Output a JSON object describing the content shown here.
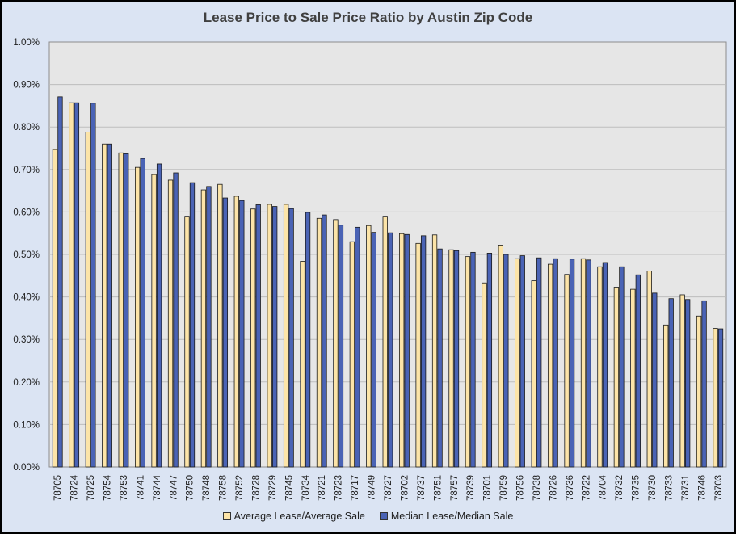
{
  "chart_data": {
    "type": "bar",
    "title": "Lease Price to Sale Price Ratio by Austin Zip Code",
    "xlabel": "",
    "ylabel": "",
    "ylim": [
      0,
      0.01
    ],
    "y_ticks": [
      "0.00%",
      "0.10%",
      "0.20%",
      "0.30%",
      "0.40%",
      "0.50%",
      "0.60%",
      "0.70%",
      "0.80%",
      "0.90%",
      "1.00%"
    ],
    "grid": true,
    "legend_position": "bottom",
    "categories": [
      "78705",
      "78724",
      "78725",
      "78754",
      "78753",
      "78741",
      "78744",
      "78747",
      "78750",
      "78748",
      "78758",
      "78752",
      "78728",
      "78729",
      "78745",
      "78734",
      "78721",
      "78723",
      "78717",
      "78749",
      "78727",
      "78702",
      "78737",
      "78751",
      "78757",
      "78739",
      "78701",
      "78759",
      "78756",
      "78738",
      "78726",
      "78736",
      "78722",
      "78704",
      "78732",
      "78735",
      "78730",
      "78733",
      "78731",
      "78746",
      "78703"
    ],
    "series": [
      {
        "name": "Average Lease/Average Sale",
        "color": "#fce4a8",
        "values": [
          0.00747,
          0.00857,
          0.00788,
          0.0076,
          0.00739,
          0.00705,
          0.00688,
          0.00675,
          0.0059,
          0.00652,
          0.00665,
          0.00637,
          0.00607,
          0.00618,
          0.00618,
          0.00484,
          0.00585,
          0.00582,
          0.0053,
          0.00568,
          0.0059,
          0.00549,
          0.00526,
          0.00546,
          0.00511,
          0.00495,
          0.00433,
          0.00522,
          0.0049,
          0.00438,
          0.00477,
          0.00453,
          0.0049,
          0.00471,
          0.00423,
          0.00418,
          0.00461,
          0.00334,
          0.00405,
          0.00355,
          0.00326
        ]
      },
      {
        "name": "Median Lease/Median Sale",
        "color": "#4a63b5",
        "values": [
          0.00871,
          0.00857,
          0.00856,
          0.0076,
          0.00737,
          0.00726,
          0.00713,
          0.00692,
          0.00669,
          0.0066,
          0.00633,
          0.00627,
          0.00617,
          0.00613,
          0.00608,
          0.00599,
          0.00593,
          0.00569,
          0.00564,
          0.00552,
          0.00551,
          0.00547,
          0.00544,
          0.00513,
          0.00509,
          0.00505,
          0.00503,
          0.005,
          0.00497,
          0.00492,
          0.0049,
          0.00489,
          0.00487,
          0.00481,
          0.00471,
          0.00452,
          0.00409,
          0.00396,
          0.00394,
          0.00391,
          0.00325
        ]
      }
    ]
  }
}
